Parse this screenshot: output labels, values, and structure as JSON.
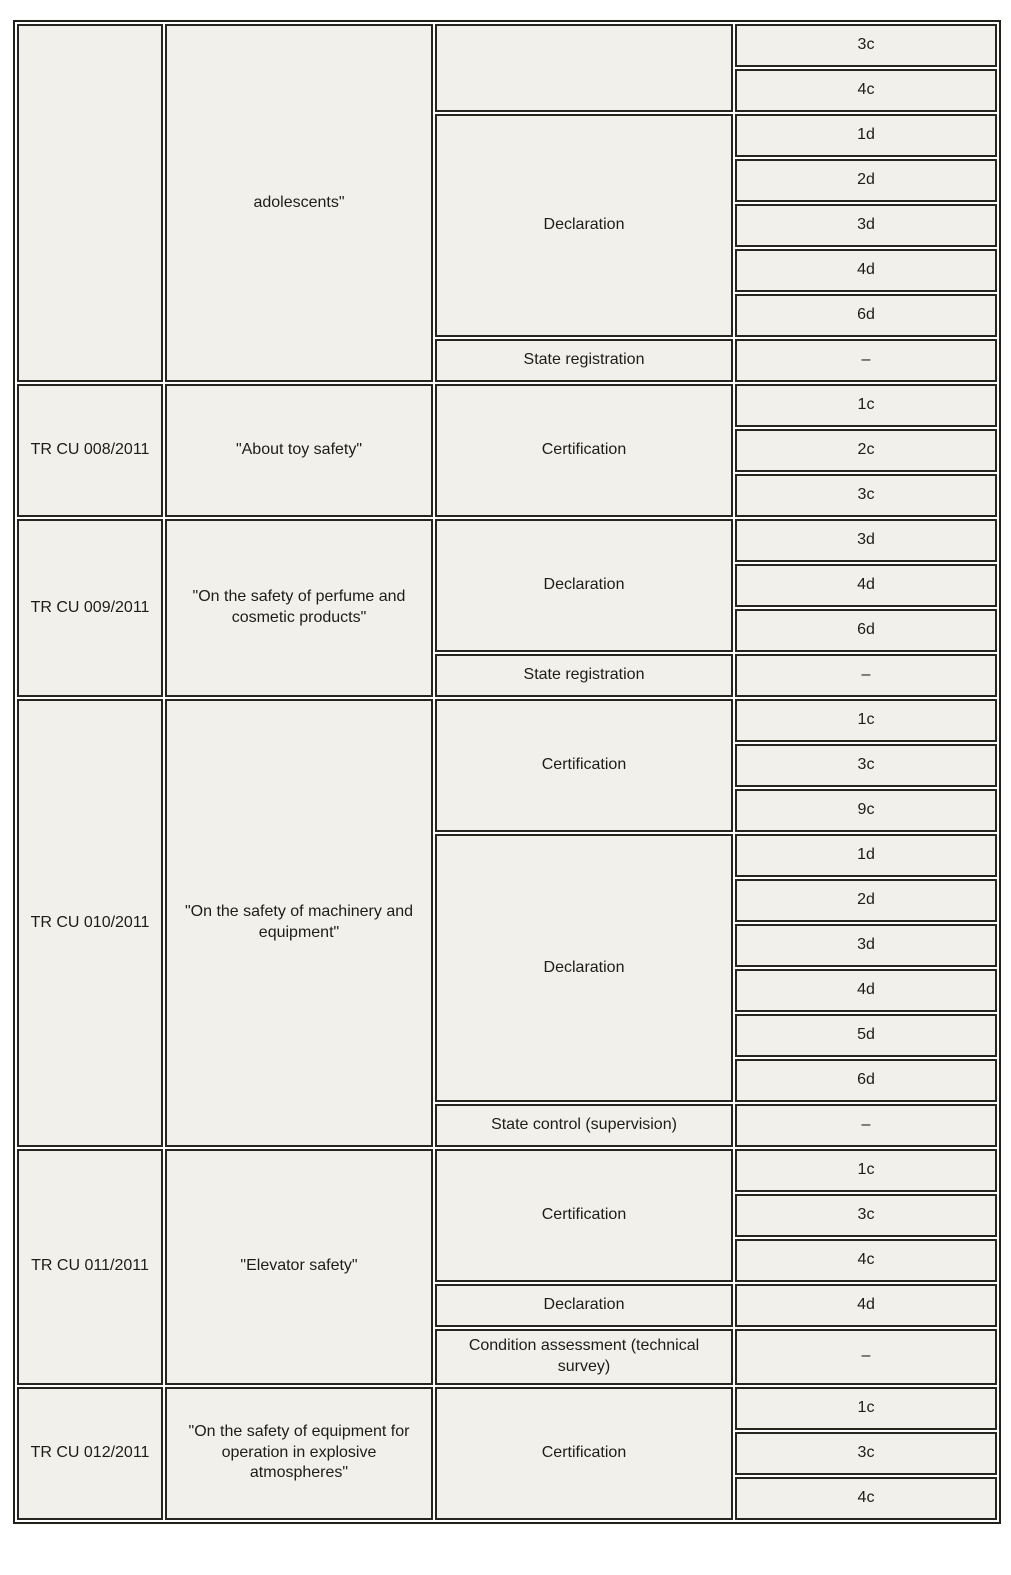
{
  "colors": {
    "cell_background": "#f2f0eb",
    "border": "#26251f",
    "text": "#1d1c19",
    "page_background": "#ffffff"
  },
  "table": {
    "groups": [
      {
        "code": "",
        "name": "adolescents\"",
        "procedures": [
          {
            "label": "",
            "schemes": [
              "3c",
              "4c"
            ]
          },
          {
            "label": "Declaration",
            "schemes": [
              "1d",
              "2d",
              "3d",
              "4d",
              "6d"
            ]
          },
          {
            "label": "State registration",
            "schemes": [
              "–"
            ]
          }
        ]
      },
      {
        "code": "TR CU 008/2011",
        "name": "\"About toy safety\"",
        "procedures": [
          {
            "label": "Certification",
            "schemes": [
              "1c",
              "2c",
              "3c"
            ]
          }
        ]
      },
      {
        "code": "TR CU 009/2011",
        "name": "\"On the safety of perfume and cosmetic products\"",
        "procedures": [
          {
            "label": "Declaration",
            "schemes": [
              "3d",
              "4d",
              "6d"
            ]
          },
          {
            "label": "State registration",
            "schemes": [
              "–"
            ]
          }
        ]
      },
      {
        "code": "TR CU 010/2011",
        "name": "\"On the safety of machinery and equipment\"",
        "procedures": [
          {
            "label": "Certification",
            "schemes": [
              "1c",
              "3c",
              "9c"
            ]
          },
          {
            "label": "Declaration",
            "schemes": [
              "1d",
              "2d",
              "3d",
              "4d",
              "5d",
              "6d"
            ]
          },
          {
            "label": "State control (supervision)",
            "schemes": [
              "–"
            ]
          }
        ]
      },
      {
        "code": "TR CU 011/2011",
        "name": "\"Elevator safety\"",
        "procedures": [
          {
            "label": "Certification",
            "schemes": [
              "1c",
              "3c",
              "4c"
            ]
          },
          {
            "label": "Declaration",
            "schemes": [
              "4d"
            ]
          },
          {
            "label": "Condition assessment (technical survey)",
            "schemes": [
              "–"
            ]
          }
        ]
      },
      {
        "code": "TR CU 012/2011",
        "name": "\"On the safety of equipment for operation in explosive atmospheres\"",
        "procedures": [
          {
            "label": "Certification",
            "schemes": [
              "1c",
              "3c",
              "4c"
            ]
          }
        ]
      }
    ]
  }
}
